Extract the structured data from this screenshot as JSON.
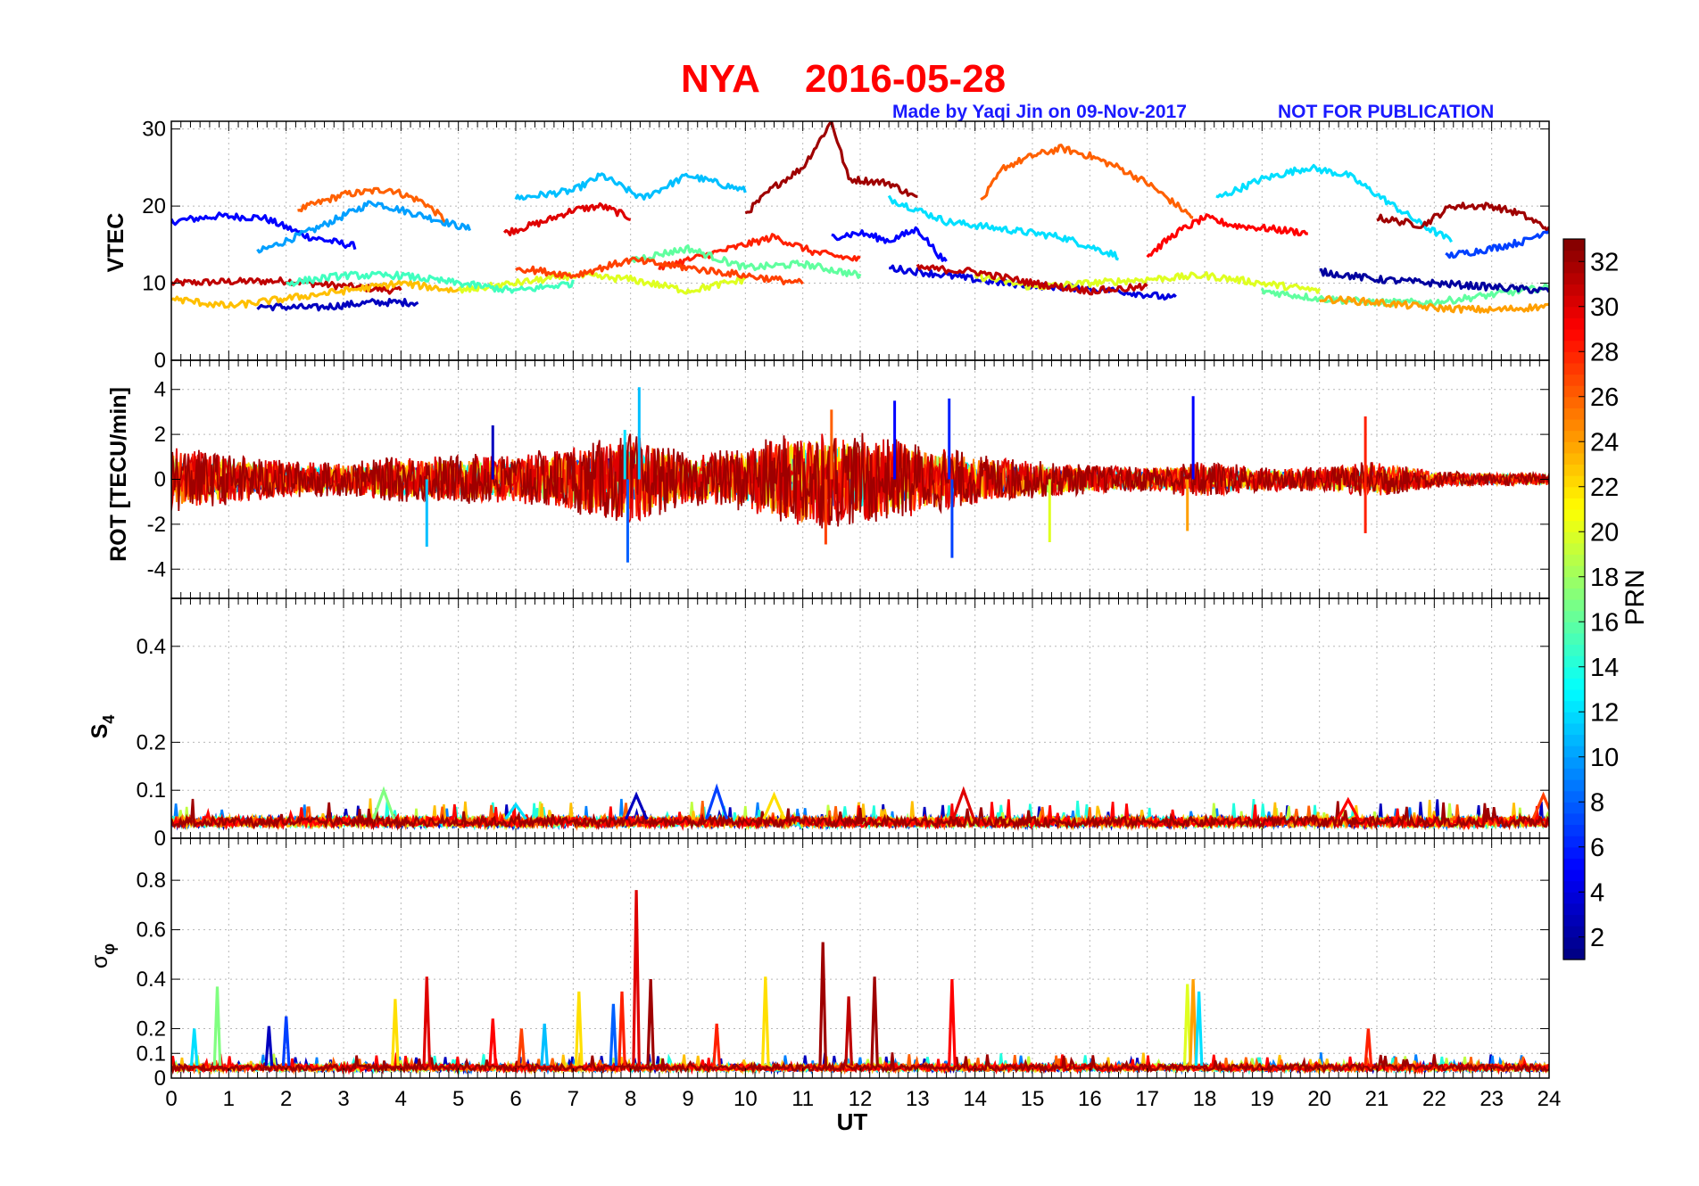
{
  "title": {
    "station": "NYA",
    "date": "2016-05-28",
    "color": "#ff0000"
  },
  "credit": {
    "made_by": "Made by Yaqi Jin on 09-Nov-2017",
    "notice": "NOT FOR PUBLICATION",
    "color": "#1a1aff"
  },
  "chart_data": [
    {
      "type": "line",
      "panel": "VTEC",
      "ylabel": "VTEC",
      "ylim": [
        0,
        31
      ],
      "yticks": [
        0,
        10,
        20,
        30
      ],
      "xlim": [
        0,
        24
      ],
      "grid": true,
      "series": [
        {
          "prn": 31,
          "x": [
            0,
            1,
            2,
            3,
            4
          ],
          "y": [
            10,
            10.2,
            10.3,
            9.6,
            9
          ]
        },
        {
          "prn": 5,
          "x": [
            0,
            0.8,
            1.6,
            2.4,
            3.2
          ],
          "y": [
            18,
            18.7,
            18.5,
            16,
            14.8
          ]
        },
        {
          "prn": 26,
          "x": [
            2.2,
            3,
            3.8,
            4.4,
            4.8
          ],
          "y": [
            19.5,
            21.5,
            22.2,
            20.5,
            18
          ]
        },
        {
          "prn": 10,
          "x": [
            1.5,
            2.5,
            3.5,
            4.5,
            5.2
          ],
          "y": [
            14,
            17,
            20.5,
            18.5,
            17
          ]
        },
        {
          "prn": 3,
          "x": [
            1.5,
            2.5,
            3.5,
            4.3
          ],
          "y": [
            7,
            6.8,
            7.5,
            7.5
          ]
        },
        {
          "prn": 30,
          "x": [
            5.8,
            6.5,
            7,
            7.5,
            8
          ],
          "y": [
            16.5,
            18,
            19.5,
            20,
            18.5
          ]
        },
        {
          "prn": 11,
          "x": [
            6,
            7,
            7.5,
            8.2,
            9,
            10
          ],
          "y": [
            21,
            22,
            24,
            21,
            24,
            22
          ]
        },
        {
          "prn": 32,
          "x": [
            10,
            10.5,
            11,
            11.5,
            11.8,
            12.5,
            13
          ],
          "y": [
            19,
            22.5,
            25,
            31,
            23.5,
            23,
            21
          ]
        },
        {
          "prn": 12,
          "x": [
            12.5,
            13.5,
            14.5,
            15.5,
            16.5
          ],
          "y": [
            21,
            18,
            17,
            16,
            13.5
          ]
        },
        {
          "prn": 26,
          "x": [
            14.1,
            14.5,
            15,
            15.5,
            16,
            16.5,
            17,
            17.8
          ],
          "y": [
            20.5,
            25,
            26.5,
            27.5,
            26.5,
            25,
            23,
            18.5
          ]
        },
        {
          "prn": 12,
          "x": [
            18.2,
            19,
            19.8,
            20.5,
            21.2,
            21.8,
            22.3
          ],
          "y": [
            21,
            23.5,
            25,
            24,
            20.5,
            17.5,
            15.5
          ]
        },
        {
          "prn": 32,
          "x": [
            21,
            21.8,
            22.3,
            23,
            23.5,
            24
          ],
          "y": [
            18.5,
            17.5,
            20,
            20,
            19,
            17
          ]
        },
        {
          "prn": 7,
          "x": [
            22.2,
            23,
            23.6,
            24
          ],
          "y": [
            13.5,
            14.5,
            15.5,
            17
          ]
        },
        {
          "prn": 29,
          "x": [
            17,
            17.5,
            18,
            18.5,
            19.2,
            19.8
          ],
          "y": [
            13.5,
            16.5,
            18.5,
            17.5,
            17,
            16.5
          ]
        },
        {
          "prn": 28,
          "x": [
            8.5,
            9.5,
            10.5,
            11.2,
            12
          ],
          "y": [
            12,
            14,
            16,
            14,
            13
          ]
        },
        {
          "prn": 5,
          "x": [
            11.5,
            12,
            12.5,
            13,
            13.5
          ],
          "y": [
            16,
            16.5,
            15.5,
            17,
            12.5
          ]
        },
        {
          "prn": 16,
          "x": [
            8,
            9,
            10,
            11,
            12
          ],
          "y": [
            13,
            14.5,
            12,
            12.5,
            11
          ]
        },
        {
          "prn": 4,
          "x": [
            12.5,
            13.5,
            14.5,
            15.5,
            16.5,
            17.5
          ],
          "y": [
            12,
            11,
            10,
            9.5,
            9,
            8
          ]
        },
        {
          "prn": 20,
          "x": [
            14,
            15,
            16,
            17,
            18,
            19,
            20
          ],
          "y": [
            11,
            9.5,
            10,
            10.5,
            11,
            10,
            9
          ]
        },
        {
          "prn": 16,
          "x": [
            19,
            20,
            21,
            22,
            23,
            24
          ],
          "y": [
            9,
            8,
            7.5,
            7.5,
            8.5,
            9.5
          ]
        },
        {
          "prn": 24,
          "x": [
            20,
            21,
            22,
            23,
            24
          ],
          "y": [
            8,
            7.5,
            6.8,
            6.5,
            7
          ]
        },
        {
          "prn": 2,
          "x": [
            20,
            21,
            22,
            23,
            24
          ],
          "y": [
            11.5,
            10.5,
            10,
            9.5,
            9
          ]
        },
        {
          "prn": 20,
          "x": [
            5,
            6,
            7,
            8,
            9,
            10
          ],
          "y": [
            9,
            10,
            11,
            10.5,
            9,
            10.5
          ]
        },
        {
          "prn": 23,
          "x": [
            0,
            1,
            2,
            3,
            4,
            5
          ],
          "y": [
            8,
            7,
            8,
            9,
            10,
            9
          ]
        },
        {
          "prn": 15,
          "x": [
            2,
            3,
            4,
            5,
            6,
            7
          ],
          "y": [
            10,
            11,
            11,
            10,
            9,
            10
          ]
        },
        {
          "prn": 27,
          "x": [
            6,
            7,
            8,
            9,
            10,
            11
          ],
          "y": [
            12,
            11,
            13,
            12,
            11,
            10
          ]
        },
        {
          "prn": 31,
          "x": [
            13,
            14,
            15,
            16,
            17
          ],
          "y": [
            12,
            11.5,
            10,
            9,
            9.5
          ]
        }
      ]
    },
    {
      "type": "line",
      "panel": "ROT",
      "ylabel": "ROT [TECU/min]",
      "ylim": [
        -5.3,
        5.3
      ],
      "yticks": [
        -4,
        -2,
        0,
        2,
        4
      ],
      "xlim": [
        0,
        24
      ],
      "grid": true,
      "envelope": {
        "x": [
          0,
          1,
          2,
          3,
          4,
          5,
          6,
          7,
          8,
          9,
          10,
          11,
          12,
          13,
          14,
          15,
          16,
          17,
          18,
          19,
          20,
          21,
          22,
          23,
          24
        ],
        "amplitude": [
          1.6,
          1.2,
          0.9,
          0.8,
          1.1,
          1.2,
          1.2,
          1.6,
          2.2,
          1.2,
          1.6,
          2.4,
          2.2,
          1.8,
          1.2,
          0.9,
          0.7,
          0.6,
          0.9,
          0.6,
          0.6,
          0.9,
          0.4,
          0.3,
          0.3
        ]
      },
      "spikes": [
        {
          "x": 4.45,
          "y": -3
        },
        {
          "x": 5.6,
          "y": 2.4
        },
        {
          "x": 7.9,
          "y": 2.2
        },
        {
          "x": 8.15,
          "y": 4.1
        },
        {
          "x": 7.95,
          "y": -3.7
        },
        {
          "x": 11.5,
          "y": 3.1
        },
        {
          "x": 11.4,
          "y": -2.9
        },
        {
          "x": 12.6,
          "y": 3.5
        },
        {
          "x": 13.55,
          "y": 3.6
        },
        {
          "x": 13.6,
          "y": -3.5
        },
        {
          "x": 15.3,
          "y": -2.8
        },
        {
          "x": 17.8,
          "y": 3.7
        },
        {
          "x": 17.7,
          "y": -2.3
        },
        {
          "x": 20.8,
          "y": 2.8
        },
        {
          "x": 20.8,
          "y": -2.4
        }
      ]
    },
    {
      "type": "line",
      "panel": "S4",
      "ylabel": "S4",
      "ylim": [
        0,
        0.5
      ],
      "yticks": [
        0,
        0.1,
        0.2,
        0.4
      ],
      "ytick_labels": [
        "0",
        "0.1",
        "0.2",
        "0.4"
      ],
      "xlim": [
        0,
        24
      ],
      "grid": true,
      "baseline": 0.04,
      "bumps": [
        {
          "x": 3.7,
          "y": 0.1
        },
        {
          "x": 6.0,
          "y": 0.07
        },
        {
          "x": 8.1,
          "y": 0.09
        },
        {
          "x": 9.5,
          "y": 0.105
        },
        {
          "x": 10.5,
          "y": 0.09
        },
        {
          "x": 13.8,
          "y": 0.1
        },
        {
          "x": 20.5,
          "y": 0.08
        },
        {
          "x": 23.9,
          "y": 0.09
        }
      ]
    },
    {
      "type": "line",
      "panel": "sigma_phi",
      "ylabel": "σφ",
      "ylim": [
        0,
        0.97
      ],
      "yticks": [
        0,
        0.1,
        0.2,
        0.4,
        0.6,
        0.8
      ],
      "xlim": [
        0,
        24
      ],
      "xticks": [
        0,
        1,
        2,
        3,
        4,
        5,
        6,
        7,
        8,
        9,
        10,
        11,
        12,
        13,
        14,
        15,
        16,
        17,
        18,
        19,
        20,
        21,
        22,
        23,
        24
      ],
      "xlabel": "UT",
      "grid": true,
      "baseline": 0.05,
      "spikes": [
        {
          "x": 0.8,
          "y": 0.37
        },
        {
          "x": 0.4,
          "y": 0.2
        },
        {
          "x": 1.7,
          "y": 0.21
        },
        {
          "x": 2.0,
          "y": 0.25
        },
        {
          "x": 3.9,
          "y": 0.32
        },
        {
          "x": 4.45,
          "y": 0.41
        },
        {
          "x": 5.6,
          "y": 0.24
        },
        {
          "x": 6.1,
          "y": 0.2
        },
        {
          "x": 6.5,
          "y": 0.22
        },
        {
          "x": 7.1,
          "y": 0.35
        },
        {
          "x": 7.7,
          "y": 0.3
        },
        {
          "x": 7.85,
          "y": 0.35
        },
        {
          "x": 8.1,
          "y": 0.76
        },
        {
          "x": 8.35,
          "y": 0.4
        },
        {
          "x": 9.5,
          "y": 0.22
        },
        {
          "x": 10.35,
          "y": 0.41
        },
        {
          "x": 11.35,
          "y": 0.55
        },
        {
          "x": 11.8,
          "y": 0.33
        },
        {
          "x": 12.25,
          "y": 0.41
        },
        {
          "x": 13.6,
          "y": 0.4
        },
        {
          "x": 17.7,
          "y": 0.38
        },
        {
          "x": 17.8,
          "y": 0.4
        },
        {
          "x": 17.9,
          "y": 0.35
        },
        {
          "x": 20.85,
          "y": 0.2
        }
      ]
    }
  ],
  "colorbar": {
    "label": "PRN",
    "range": [
      1,
      33
    ],
    "ticks": [
      2,
      4,
      6,
      8,
      10,
      12,
      14,
      16,
      18,
      20,
      22,
      24,
      26,
      28,
      30,
      32
    ],
    "tick_labels": [
      "2",
      "4",
      "6",
      "8",
      "10",
      "12",
      "14",
      "16",
      "18",
      "20",
      "22",
      "24",
      "26",
      "28",
      "30",
      "32"
    ],
    "colormap": "jet"
  }
}
